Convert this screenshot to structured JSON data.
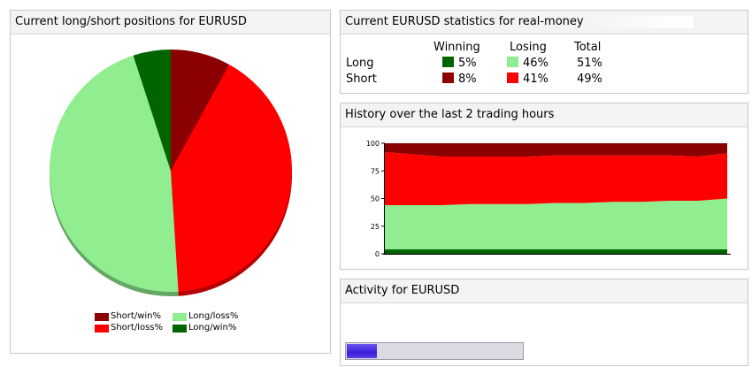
{
  "pie_panel": {
    "title": "Current long/short positions for EURUSD"
  },
  "stats_panel": {
    "title": "Current EURUSD statistics for real-money",
    "columns": {
      "winning": "Winning",
      "losing": "Losing",
      "total": "Total"
    },
    "rows": [
      {
        "label": "Long",
        "winning": "5%",
        "losing": "46%",
        "total": "51%",
        "win_color": "#006400",
        "loss_color": "#90ee90"
      },
      {
        "label": "Short",
        "winning": "8%",
        "losing": "41%",
        "total": "49%",
        "win_color": "#8b0000",
        "loss_color": "#ff0000"
      }
    ]
  },
  "history_panel": {
    "title": "History over the last 2 trading hours"
  },
  "activity_panel": {
    "title": "Activity for EURUSD",
    "level": 0.17
  },
  "chart_data": [
    {
      "type": "pie",
      "slices": [
        {
          "name": "Short/win%",
          "value": 8,
          "color": "#8b0000"
        },
        {
          "name": "Short/loss%",
          "value": 41,
          "color": "#ff0000"
        },
        {
          "name": "Long/loss%",
          "value": 46,
          "color": "#90ee90"
        },
        {
          "name": "Long/win%",
          "value": 5,
          "color": "#006400"
        }
      ],
      "legend": [
        {
          "label": "Short/win%",
          "color": "#8b0000"
        },
        {
          "label": "Long/loss%",
          "color": "#90ee90"
        },
        {
          "label": "Short/loss%",
          "color": "#ff0000"
        },
        {
          "label": "Long/win%",
          "color": "#006400"
        }
      ]
    },
    {
      "type": "area",
      "stacked": true,
      "ylim": [
        0,
        100
      ],
      "yticks": [
        0,
        25,
        50,
        75,
        100
      ],
      "x": [
        0,
        10,
        20,
        30,
        40,
        50,
        60,
        70,
        80,
        90,
        100,
        110,
        120
      ],
      "series": [
        {
          "name": "Long/win%",
          "color": "#006400",
          "values": [
            4,
            4,
            4,
            4,
            4,
            4,
            4,
            4,
            4,
            4,
            4,
            4,
            4
          ]
        },
        {
          "name": "Long/loss%",
          "color": "#90ee90",
          "values": [
            40,
            40,
            40,
            41,
            41,
            41,
            42,
            42,
            43,
            43,
            44,
            44,
            46
          ]
        },
        {
          "name": "Short/loss%",
          "color": "#ff0000",
          "values": [
            48,
            46,
            44,
            43,
            43,
            43,
            43,
            43,
            42,
            42,
            41,
            40,
            41
          ]
        },
        {
          "name": "Short/win%",
          "color": "#8b0000",
          "values": [
            8,
            10,
            12,
            12,
            12,
            12,
            11,
            11,
            11,
            11,
            11,
            12,
            9
          ]
        }
      ]
    }
  ]
}
